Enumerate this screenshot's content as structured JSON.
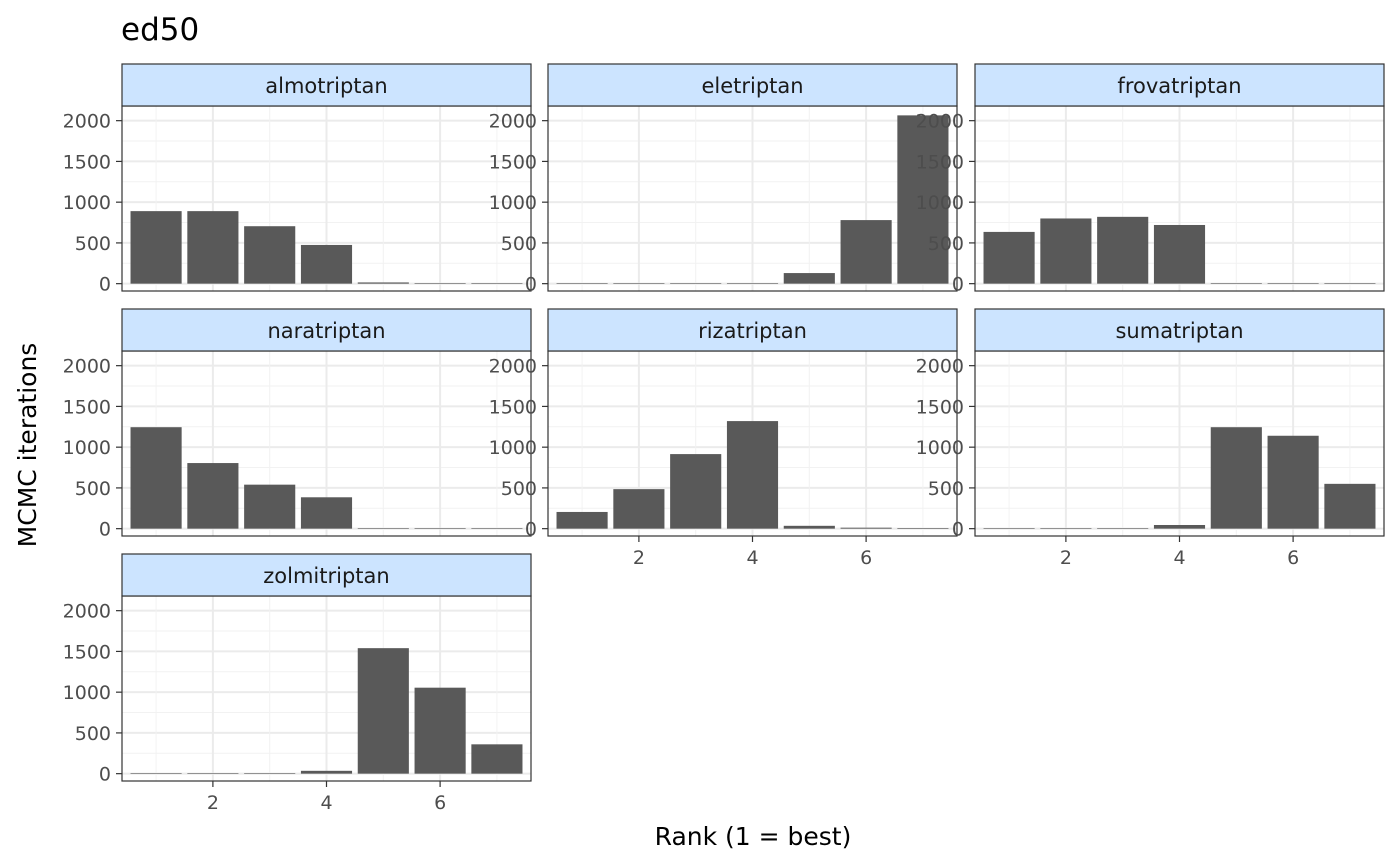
{
  "chart_data": {
    "type": "bar",
    "title": "ed50",
    "xlabel": "Rank (1 = best)",
    "ylabel": "MCMC iterations",
    "x": [
      1,
      2,
      3,
      4,
      5,
      6,
      7
    ],
    "x_ticks": [
      2,
      4,
      6
    ],
    "y_ticks": [
      0,
      500,
      1000,
      1500,
      2000
    ],
    "ylim": [
      -90,
      2180
    ],
    "xlim": [
      0.4,
      7.6
    ],
    "grid": true,
    "facet_layout": "3 columns, free x-axis labels on bottom row of each column",
    "bar_color": "#595959",
    "strip_color": "#cce4ff",
    "panels": [
      {
        "name": "almotriptan",
        "values": [
          890,
          890,
          705,
          475,
          15,
          0,
          0
        ]
      },
      {
        "name": "eletriptan",
        "values": [
          0,
          0,
          0,
          0,
          130,
          780,
          2065
        ]
      },
      {
        "name": "frovatriptan",
        "values": [
          635,
          800,
          820,
          720,
          0,
          0,
          0
        ]
      },
      {
        "name": "naratriptan",
        "values": [
          1245,
          805,
          540,
          385,
          0,
          0,
          0
        ]
      },
      {
        "name": "rizatriptan",
        "values": [
          205,
          485,
          915,
          1320,
          35,
          12,
          8
        ]
      },
      {
        "name": "sumatriptan",
        "values": [
          0,
          0,
          0,
          45,
          1245,
          1140,
          550
        ]
      },
      {
        "name": "zolmitriptan",
        "values": [
          0,
          0,
          0,
          35,
          1540,
          1055,
          360
        ]
      }
    ]
  }
}
